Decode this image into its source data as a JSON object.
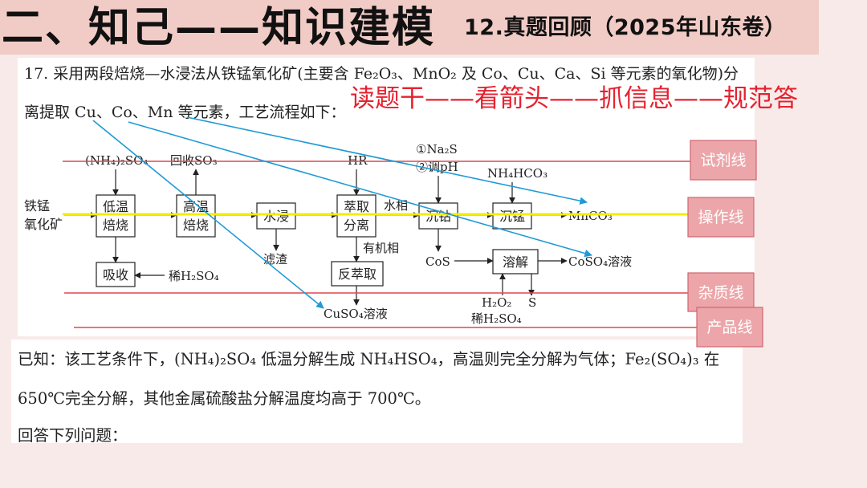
{
  "slide": {
    "title": "二、知己——知识建模",
    "subtitle": "12.真题回顾（2025年山东卷）",
    "method_hint": "读题干——看箭头——抓信息——规范答"
  },
  "question": {
    "stem": [
      "17. 采用两段焙烧—水浸法从铁锰氧化矿(主要含 Fe₂O₃、MnO₂ 及 Co、Cu、Ca、Si 等元素的氧化物)分",
      "离提取 Cu、Co、Mn 等元素，工艺流程如下："
    ],
    "known": [
      "已知：该工艺条件下，(NH₄)₂SO₄ 低温分解生成 NH₄HSO₄，高温则完全分解为气体；Fe₂(SO₄)₃ 在",
      "650℃完全分解，其他金属硫酸盐分解温度均高于 700℃。"
    ],
    "prompt": "回答下列问题："
  },
  "flow": {
    "raw_material": [
      "铁锰",
      "氧化矿"
    ],
    "steps": {
      "low_temp_roast": [
        "低温",
        "焙烧"
      ],
      "high_temp_roast": [
        "高温",
        "焙烧"
      ],
      "water_leach": "水浸",
      "extraction": [
        "萃取",
        "分离"
      ],
      "cobalt_precipitation": "沉钴",
      "manganese_precipitation": "沉锰",
      "absorption": "吸收",
      "back_extraction": "反萃取",
      "dissolution": "溶解"
    },
    "reagents": {
      "ammonium_sulfate": "(NH₄)₂SO₄",
      "recover_so3": "回收SO₃",
      "extractant": "HR",
      "cobalt_reagent_1": "①Na₂S",
      "cobalt_reagent_2": "②调pH",
      "ammonium_bicarbonate": "NH₄HCO₃",
      "dilute_acid_absorb": "稀H₂SO₄",
      "hydrogen_peroxide": "H₂O₂",
      "dilute_acid_dissolve": "稀H₂SO₄"
    },
    "streams": {
      "aqueous_phase": "水相",
      "organic_phase": "有机相",
      "filter_residue": "滤渣",
      "mnco3": "MnCO₃",
      "cos": "CoS",
      "coso4_solution": "CoSO₄溶液",
      "cuso4_solution": "CuSO₄溶液",
      "sulfur": "S"
    }
  },
  "guide_lines": {
    "reagent": "试剂线",
    "operation": "操作线",
    "impurity": "杂质线",
    "product": "产品线"
  },
  "colors": {
    "slide_bg": "#f9eaea",
    "header_band": "#f1cbc5",
    "hint_red": "#e5222f",
    "guide_red": "#e0464f",
    "operation_yellow": "#f3ee00",
    "info_arrow_blue": "#1f9ad6",
    "tag_fill": "#eca6aa",
    "tag_border": "#d0656e"
  }
}
